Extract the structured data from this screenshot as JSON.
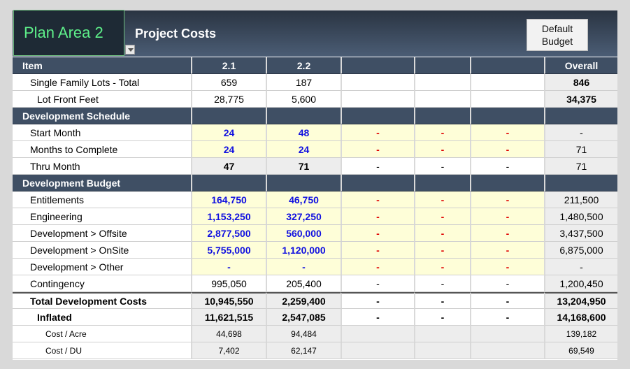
{
  "header": {
    "plan_area": "Plan Area 2",
    "title": "Project Costs",
    "default_budget_line1": "Default",
    "default_budget_line2": "Budget"
  },
  "columns": [
    "Item",
    "2.1",
    "2.2",
    "",
    "",
    "",
    "Overall"
  ],
  "rows": {
    "sfl": {
      "label": "Single Family Lots - Total",
      "c1": "659",
      "c2": "187",
      "c3": "",
      "c4": "",
      "c5": "",
      "overall": "846"
    },
    "lff": {
      "label": "Lot Front Feet",
      "c1": "28,775",
      "c2": "5,600",
      "c3": "",
      "c4": "",
      "c5": "",
      "overall": "34,375"
    },
    "sched_header": "Development Schedule",
    "start": {
      "label": "Start Month",
      "c1": "24",
      "c2": "48",
      "c3": "-",
      "c4": "-",
      "c5": "-",
      "overall": "-"
    },
    "months": {
      "label": "Months to Complete",
      "c1": "24",
      "c2": "24",
      "c3": "-",
      "c4": "-",
      "c5": "-",
      "overall": "71"
    },
    "thru": {
      "label": "Thru Month",
      "c1": "47",
      "c2": "71",
      "c3": "-",
      "c4": "-",
      "c5": "-",
      "overall": "71"
    },
    "budget_header": "Development Budget",
    "ent": {
      "label": "Entitlements",
      "c1": "164,750",
      "c2": "46,750",
      "c3": "-",
      "c4": "-",
      "c5": "-",
      "overall": "211,500"
    },
    "eng": {
      "label": "Engineering",
      "c1": "1,153,250",
      "c2": "327,250",
      "c3": "-",
      "c4": "-",
      "c5": "-",
      "overall": "1,480,500"
    },
    "off": {
      "label": "Development > Offsite",
      "c1": "2,877,500",
      "c2": "560,000",
      "c3": "-",
      "c4": "-",
      "c5": "-",
      "overall": "3,437,500"
    },
    "on": {
      "label": "Development > OnSite",
      "c1": "5,755,000",
      "c2": "1,120,000",
      "c3": "-",
      "c4": "-",
      "c5": "-",
      "overall": "6,875,000"
    },
    "oth": {
      "label": "Development > Other",
      "c1": "-",
      "c2": "-",
      "c3": "-",
      "c4": "-",
      "c5": "-",
      "overall": "-"
    },
    "cont": {
      "label": "Contingency",
      "c1": "995,050",
      "c2": "205,400",
      "c3": "-",
      "c4": "-",
      "c5": "-",
      "overall": "1,200,450"
    },
    "tot": {
      "label": "Total Development Costs",
      "c1": "10,945,550",
      "c2": "2,259,400",
      "c3": "-",
      "c4": "-",
      "c5": "-",
      "overall": "13,204,950"
    },
    "inf": {
      "label": "Inflated",
      "c1": "11,621,515",
      "c2": "2,547,085",
      "c3": "-",
      "c4": "-",
      "c5": "-",
      "overall": "14,168,600"
    },
    "cpa": {
      "label": "Cost / Acre",
      "c1": "44,698",
      "c2": "94,484",
      "c3": "",
      "c4": "",
      "c5": "",
      "overall": "139,182"
    },
    "cpd": {
      "label": "Cost / DU",
      "c1": "7,402",
      "c2": "62,147",
      "c3": "",
      "c4": "",
      "c5": "",
      "overall": "69,549"
    }
  }
}
